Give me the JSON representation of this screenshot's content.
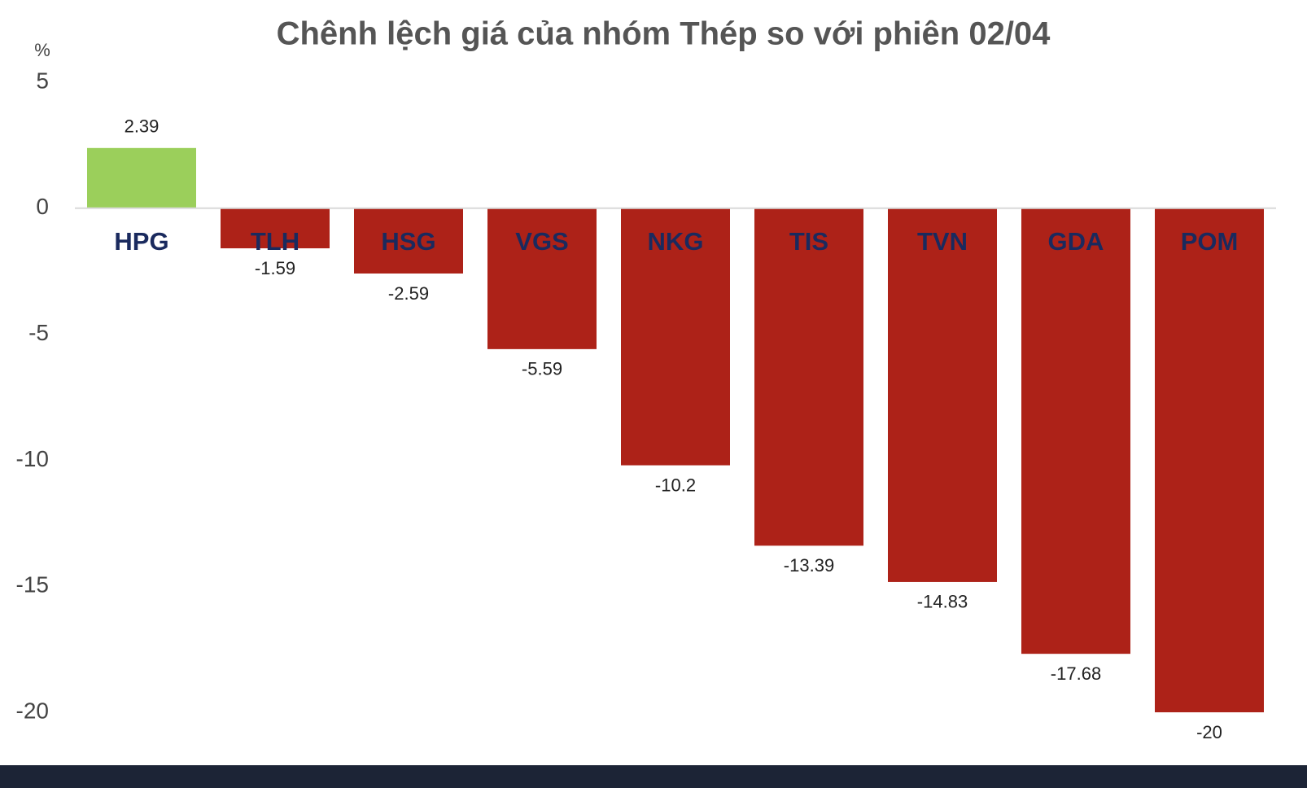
{
  "chart_data": {
    "type": "bar",
    "title": "Chênh lệch giá của nhóm Thép so với phiên 02/04",
    "y_label": "%",
    "categories": [
      "HPG",
      "TLH",
      "HSG",
      "VGS",
      "NKG",
      "TIS",
      "TVN",
      "GDA",
      "POM"
    ],
    "values": [
      2.39,
      -1.59,
      -2.59,
      -5.59,
      -10.2,
      -13.39,
      -14.83,
      -17.68,
      -20
    ],
    "colors": [
      "#9bcf5b",
      "#ad2218",
      "#ad2218",
      "#ad2218",
      "#ad2218",
      "#ad2218",
      "#ad2218",
      "#ad2218",
      "#ad2218"
    ],
    "ylim": [
      -20,
      5
    ],
    "yticks": [
      5,
      0,
      -5,
      -10,
      -15,
      -20
    ],
    "grid": false
  }
}
